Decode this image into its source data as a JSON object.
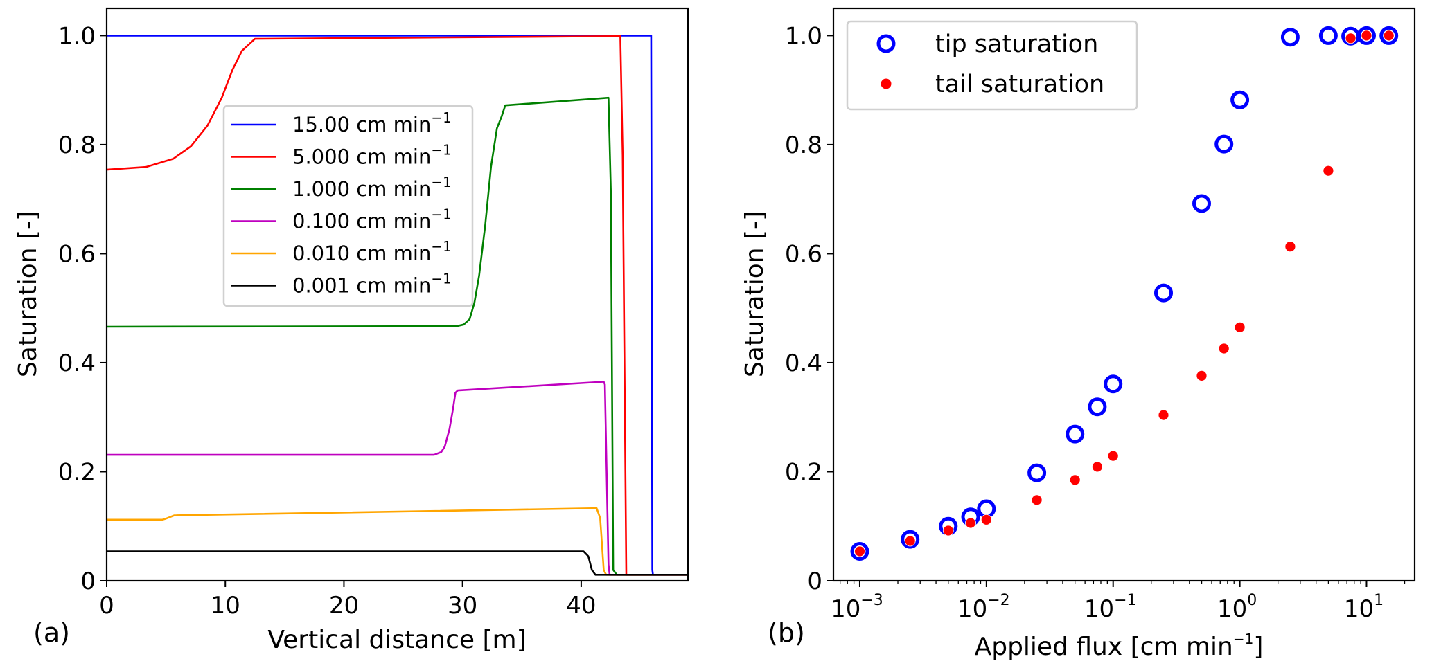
{
  "chart_data": [
    {
      "panel": "(a)",
      "type": "line",
      "title": "",
      "xlabel": "Vertical distance [m]",
      "ylabel": "Saturation [-]",
      "xlim": [
        0,
        49
      ],
      "ylim": [
        0,
        1.05
      ],
      "xticks": [
        0,
        10,
        20,
        30,
        40
      ],
      "xtick_labels": [
        "0",
        "10",
        "20",
        "30",
        "40"
      ],
      "yticks": [
        0,
        0.2,
        0.4,
        0.6,
        0.8,
        1.0
      ],
      "ytick_labels": [
        "0",
        "0.2",
        "0.4",
        "0.6",
        "0.8",
        "1.0"
      ],
      "grid": false,
      "legend_placement": "center",
      "series": [
        {
          "name": "15.00 cm min",
          "name_sup": "−1",
          "color": "#0000ff",
          "x": [
            0,
            45.9,
            46.0,
            46.05,
            49
          ],
          "y": [
            1.0,
            1.0,
            0.02,
            0.011,
            0.011
          ]
        },
        {
          "name": "5.000 cm min",
          "name_sup": "−1",
          "color": "#ff0000",
          "x": [
            0,
            3.3,
            5.6,
            7.1,
            8.5,
            9.7,
            10.6,
            11.4,
            12.5,
            43.3,
            43.5,
            43.8,
            49
          ],
          "y": [
            0.754,
            0.759,
            0.774,
            0.797,
            0.835,
            0.886,
            0.937,
            0.972,
            0.994,
            0.999,
            0.78,
            0.011,
            0.011
          ]
        },
        {
          "name": "1.000 cm min",
          "name_sup": "−1",
          "color": "#008000",
          "x": [
            0,
            29.5,
            30.1,
            30.6,
            31.0,
            31.4,
            31.9,
            32.4,
            32.9,
            33.3,
            33.6,
            42.3,
            42.5,
            42.7,
            43.0,
            49
          ],
          "y": [
            0.466,
            0.467,
            0.47,
            0.48,
            0.51,
            0.56,
            0.65,
            0.76,
            0.83,
            0.852,
            0.872,
            0.886,
            0.715,
            0.02,
            0.011,
            0.011
          ]
        },
        {
          "name": "0.100 cm min",
          "name_sup": "−1",
          "color": "#bf00bf",
          "x": [
            0,
            27.6,
            28.2,
            28.5,
            28.9,
            29.2,
            29.4,
            29.6,
            41.9,
            42.0,
            42.3,
            42.4,
            49
          ],
          "y": [
            0.231,
            0.231,
            0.236,
            0.246,
            0.278,
            0.316,
            0.345,
            0.349,
            0.365,
            0.36,
            0.03,
            0.011,
            0.011
          ]
        },
        {
          "name": "0.010 cm min",
          "name_sup": "−1",
          "color": "#ffa500",
          "x": [
            0,
            4.7,
            5.0,
            5.7,
            41.3,
            41.6,
            41.9,
            42.1,
            49
          ],
          "y": [
            0.112,
            0.112,
            0.114,
            0.12,
            0.133,
            0.115,
            0.02,
            0.011,
            0.011
          ]
        },
        {
          "name": "0.001 cm min",
          "name_sup": "−1",
          "color": "#000000",
          "x": [
            0,
            40.2,
            40.6,
            40.9,
            41.2,
            49
          ],
          "y": [
            0.054,
            0.054,
            0.045,
            0.02,
            0.011,
            0.011
          ]
        }
      ]
    },
    {
      "panel": "(b)",
      "type": "scatter",
      "title": "",
      "xlabel": "Applied flux [cm min",
      "xlabel_sup": "−1",
      "xlabel_end": "]",
      "ylabel": "Saturation [-]",
      "xscale": "log",
      "xlim": [
        0.00062,
        24
      ],
      "ylim": [
        0,
        1.05
      ],
      "xticks": [
        0.001,
        0.01,
        0.1,
        1,
        10
      ],
      "xtick_labels": [
        {
          "base": "10",
          "exp": "−3"
        },
        {
          "base": "10",
          "exp": "−2"
        },
        {
          "base": "10",
          "exp": "−1"
        },
        {
          "base": "10",
          "exp": "0"
        },
        {
          "base": "10",
          "exp": "1"
        }
      ],
      "yticks": [
        0,
        0.2,
        0.4,
        0.6,
        0.8,
        1.0
      ],
      "ytick_labels": [
        "0",
        "0.2",
        "0.4",
        "0.6",
        "0.8",
        "1.0"
      ],
      "grid": false,
      "legend_placement": "top-left",
      "x": [
        0.001,
        0.0025,
        0.005,
        0.0075,
        0.01,
        0.025,
        0.05,
        0.075,
        0.1,
        0.25,
        0.5,
        0.75,
        1.0,
        2.5,
        5.0,
        7.5,
        10,
        15
      ],
      "series": [
        {
          "name": "tip saturation",
          "marker": "open-circle",
          "color": "#0000ff",
          "values": [
            0.054,
            0.076,
            0.1,
            0.117,
            0.132,
            0.198,
            0.269,
            0.319,
            0.361,
            0.528,
            0.692,
            0.801,
            0.882,
            0.997,
            1.0,
            0.999,
            1.0,
            1.0
          ]
        },
        {
          "name": "tail saturation",
          "marker": "filled-dot",
          "color": "#ff0000",
          "values": [
            0.054,
            0.073,
            0.092,
            0.106,
            0.112,
            0.148,
            0.185,
            0.209,
            0.229,
            0.304,
            0.376,
            0.426,
            0.465,
            0.613,
            0.752,
            0.995,
            1.0,
            1.0
          ]
        }
      ]
    }
  ]
}
